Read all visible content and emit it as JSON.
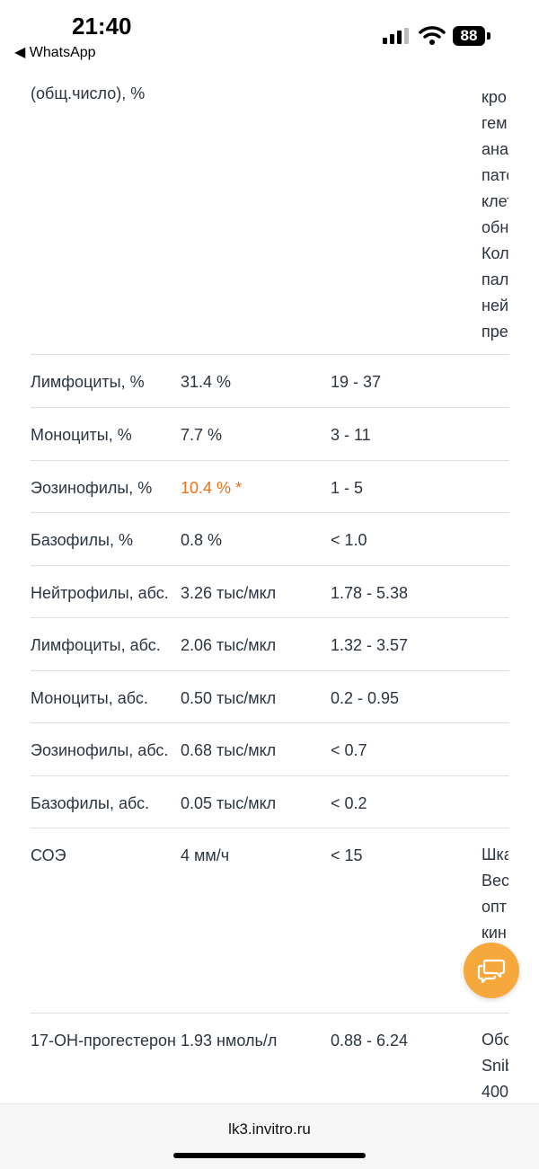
{
  "status_bar": {
    "time": "21:40",
    "back_label": "◀ WhatsApp",
    "battery": "88"
  },
  "top_row": {
    "name": "(общ.число), %",
    "note_lines": [
      "кро",
      "гем",
      "ана",
      "пато",
      "клет",
      "обн",
      "Кол",
      "пал",
      "ней",
      "пре"
    ]
  },
  "rows": [
    {
      "name": "Лимфоциты, %",
      "value": "31.4 %",
      "ref": "19 - 37",
      "flag": false
    },
    {
      "name": "Моноциты, %",
      "value": "7.7 %",
      "ref": "3 - 11",
      "flag": false
    },
    {
      "name": "Эозинофилы, %",
      "value": "10.4 % *",
      "ref": "1 - 5",
      "flag": true
    },
    {
      "name": "Базофилы, %",
      "value": "0.8 %",
      "ref": "< 1.0",
      "flag": false
    },
    {
      "name": "Нейтрофилы, абс.",
      "value": "3.26 тыс/мкл",
      "ref": "1.78 - 5.38",
      "flag": false
    },
    {
      "name": "Лимфоциты, абс.",
      "value": "2.06 тыс/мкл",
      "ref": "1.32 - 3.57",
      "flag": false
    },
    {
      "name": "Моноциты, абс.",
      "value": "0.50 тыс/мкл",
      "ref": "0.2 - 0.95",
      "flag": false
    },
    {
      "name": "Эозинофилы, абс.",
      "value": "0.68 тыс/мкл",
      "ref": "< 0.7",
      "flag": false
    },
    {
      "name": "Базофилы, абс.",
      "value": "0.05 тыс/мкл",
      "ref": "< 0.2",
      "flag": false
    }
  ],
  "soe_row": {
    "name": "СОЭ",
    "value": "4 мм/ч",
    "ref": "< 15",
    "note_lines": [
      "Шка",
      "Вест",
      "опт",
      "кин"
    ]
  },
  "prog_row": {
    "name": "17-ОН-прогестерон",
    "value": "1.93 нмоль/л",
    "ref": "0.88 - 6.24",
    "note_lines": [
      "Обс",
      "Snib",
      "400"
    ]
  },
  "colors": {
    "flag": "#e8721b",
    "fab": "#f6a83c"
  },
  "icons": {
    "chat": "chat-bubbles-icon"
  },
  "bottom_bar": {
    "url": "lk3.invitro.ru"
  }
}
